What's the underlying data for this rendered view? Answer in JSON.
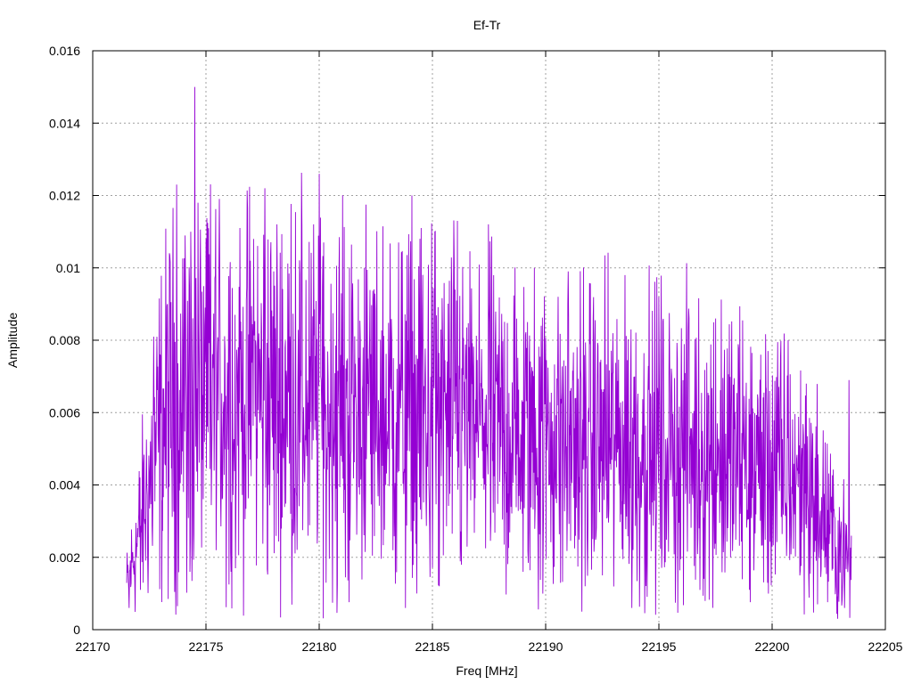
{
  "chart_data": {
    "type": "line",
    "title": "Ef-Tr",
    "xlabel": "Freq [MHz]",
    "ylabel": "Amplitude",
    "xlim": [
      22170,
      22205
    ],
    "ylim": [
      0,
      0.016
    ],
    "xticks": [
      22170,
      22175,
      22180,
      22185,
      22190,
      22195,
      22200,
      22205
    ],
    "xtick_labels": [
      "22170",
      "22175",
      "22180",
      "22185",
      "22190",
      "22195",
      "22200",
      "22205"
    ],
    "yticks": [
      0,
      0.002,
      0.004,
      0.006,
      0.008,
      0.01,
      0.012,
      0.014,
      0.016
    ],
    "ytick_labels": [
      "0",
      "0.002",
      "0.004",
      "0.006",
      "0.008",
      "0.01",
      "0.012",
      "0.014",
      "0.016"
    ],
    "grid": true,
    "legend": "none",
    "series_color": "#9400d3",
    "x_start": 22171.5,
    "x_end": 22203.5,
    "envelope": [
      [
        22171.5,
        0.0012
      ],
      [
        22172.0,
        0.0025
      ],
      [
        22172.5,
        0.004
      ],
      [
        22173.0,
        0.0055
      ],
      [
        22173.5,
        0.0062
      ],
      [
        22174.5,
        0.0068
      ],
      [
        22176.0,
        0.0066
      ],
      [
        22178.0,
        0.0065
      ],
      [
        22180.0,
        0.0062
      ],
      [
        22182.0,
        0.006
      ],
      [
        22184.0,
        0.006
      ],
      [
        22186.0,
        0.0058
      ],
      [
        22188.0,
        0.0055
      ],
      [
        22190.0,
        0.0053
      ],
      [
        22192.0,
        0.0052
      ],
      [
        22194.0,
        0.005
      ],
      [
        22196.0,
        0.005
      ],
      [
        22198.0,
        0.0048
      ],
      [
        22200.0,
        0.0045
      ],
      [
        22201.5,
        0.004
      ],
      [
        22202.5,
        0.0028
      ],
      [
        22203.5,
        0.0018
      ]
    ],
    "spikes": [
      [
        22172.7,
        0.0081
      ],
      [
        22173.3,
        0.009
      ],
      [
        22173.7,
        0.0123
      ],
      [
        22174.5,
        0.015
      ],
      [
        22174.65,
        0.0118
      ],
      [
        22175.0,
        0.0108
      ],
      [
        22176.5,
        0.0111
      ],
      [
        22177.1,
        0.0108
      ],
      [
        22177.6,
        0.0122
      ],
      [
        22178.0,
        0.0099
      ],
      [
        22180.0,
        0.0126
      ],
      [
        22180.2,
        0.0107
      ],
      [
        22182.0,
        0.01
      ],
      [
        22183.5,
        0.0107
      ],
      [
        22184.1,
        0.012
      ],
      [
        22184.5,
        0.0111
      ],
      [
        22185.1,
        0.011
      ],
      [
        22186.1,
        0.0113
      ],
      [
        22187.5,
        0.009
      ],
      [
        22189.5,
        0.01
      ],
      [
        22191.0,
        0.0099
      ],
      [
        22193.5,
        0.0098
      ],
      [
        22195.0,
        0.0092
      ],
      [
        22196.3,
        0.0083
      ],
      [
        22197.5,
        0.0086
      ],
      [
        22199.5,
        0.0076
      ],
      [
        22200.7,
        0.008
      ],
      [
        22201.5,
        0.0068
      ],
      [
        22203.4,
        0.0069
      ]
    ],
    "dips": [
      [
        22171.6,
        0.0006
      ],
      [
        22172.1,
        0.0011
      ],
      [
        22174.3,
        0.0016
      ],
      [
        22176.3,
        0.0017
      ],
      [
        22180.3,
        0.0013
      ],
      [
        22184.3,
        0.001
      ],
      [
        22185.3,
        0.0012
      ],
      [
        22189.0,
        0.0016
      ],
      [
        22191.6,
        0.0005
      ],
      [
        22193.8,
        0.0006
      ],
      [
        22199.0,
        0.0011
      ],
      [
        22202.0,
        0.0007
      ],
      [
        22202.9,
        0.0003
      ],
      [
        22203.2,
        0.0006
      ]
    ]
  }
}
